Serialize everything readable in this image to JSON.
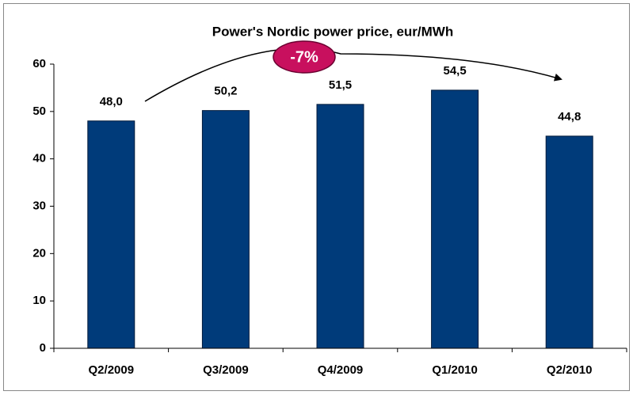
{
  "chart_data": {
    "type": "bar",
    "title": "Power's Nordic power price, eur/MWh",
    "categories": [
      "Q2/2009",
      "Q3/2009",
      "Q4/2009",
      "Q1/2010",
      "Q2/2010"
    ],
    "values": [
      48.0,
      50.2,
      51.5,
      54.5,
      44.8
    ],
    "value_labels": [
      "48,0",
      "50,2",
      "51,5",
      "54,5",
      "44,8"
    ],
    "color": "#003b7a",
    "ylim": [
      0,
      60
    ],
    "yticks": [
      0,
      10,
      20,
      30,
      40,
      50,
      60
    ],
    "grid": false,
    "annotation": "-7%"
  }
}
